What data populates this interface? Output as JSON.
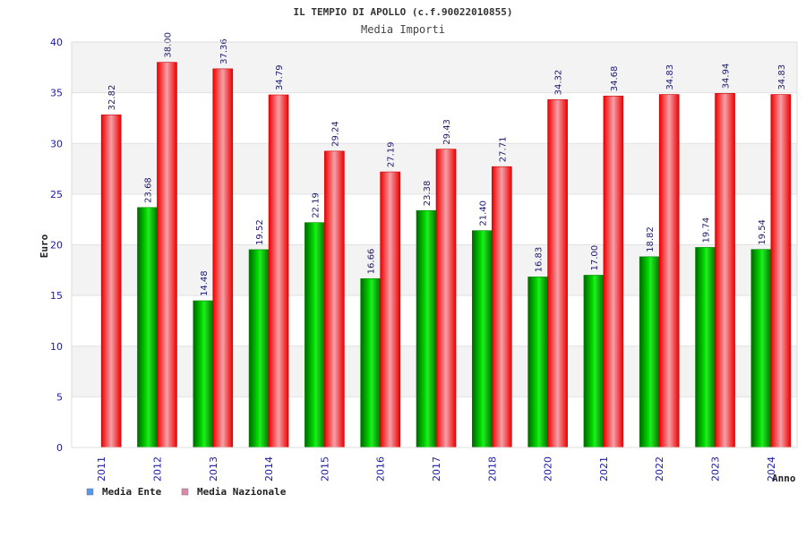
{
  "chart_data": {
    "type": "bar",
    "title": "IL TEMPIO DI APOLLO (c.f.90022010855)",
    "subtitle": "Media Importi",
    "xlabel": "Anno",
    "ylabel": "Euro",
    "ylim": [
      0,
      40
    ],
    "yticks": [
      "0",
      "5",
      "10",
      "15",
      "20",
      "25",
      "30",
      "35",
      "40"
    ],
    "grid": true,
    "legend_position": "bottom-left",
    "categories": [
      "2011",
      "2012",
      "2013",
      "2014",
      "2015",
      "2016",
      "2017",
      "2018",
      "2020",
      "2021",
      "2022",
      "2023",
      "2024"
    ],
    "series": [
      {
        "name": "Media Ente",
        "color": "#00aa00",
        "legend_color": "#5599ee",
        "values": [
          null,
          23.68,
          14.48,
          19.52,
          22.19,
          16.66,
          23.38,
          21.4,
          16.83,
          17.0,
          18.82,
          19.74,
          19.54
        ],
        "labels": [
          "",
          "23.68",
          "14.48",
          "19.52",
          "22.19",
          "16.66",
          "23.38",
          "21.40",
          "16.83",
          "17.00",
          "18.82",
          "19.74",
          "19.54"
        ]
      },
      {
        "name": "Media Nazionale",
        "color": "#ee0000",
        "legend_color": "#dd88aa",
        "values": [
          32.82,
          38.0,
          37.36,
          34.79,
          29.24,
          27.19,
          29.43,
          27.71,
          34.32,
          34.68,
          34.83,
          34.94,
          34.83
        ],
        "labels": [
          "32.82",
          "38.00",
          "37.36",
          "34.79",
          "29.24",
          "27.19",
          "29.43",
          "27.71",
          "34.32",
          "34.68",
          "34.83",
          "34.94",
          "34.83"
        ]
      }
    ]
  }
}
